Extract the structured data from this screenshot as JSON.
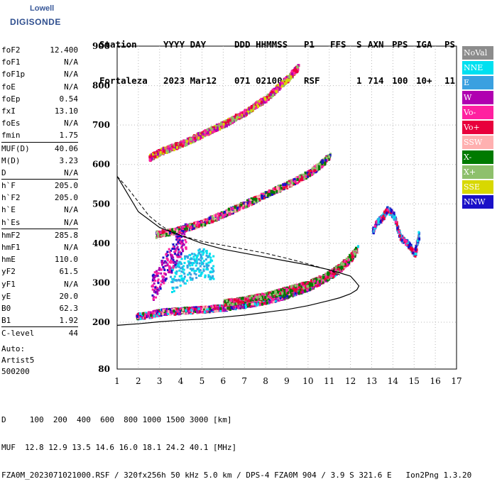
{
  "logo": {
    "brand": "Lowell",
    "name": "DIGISONDE"
  },
  "header": {
    "row1": [
      "Station",
      "YYYY DAY",
      "DDD HHMMSS",
      "P1",
      "FFS",
      "S",
      "AXN",
      "PPS",
      "IGA",
      "PS"
    ],
    "row2": [
      "Fortaleza",
      "2023 Mar12",
      "071 021000",
      "RSF",
      "",
      "1",
      "714",
      "100",
      "10+",
      "11"
    ]
  },
  "params": {
    "group1": [
      {
        "label": "foF2",
        "value": "12.400"
      },
      {
        "label": "foF1",
        "value": "N/A"
      },
      {
        "label": "foF1p",
        "value": "N/A"
      },
      {
        "label": "foE",
        "value": "N/A"
      },
      {
        "label": "foEp",
        "value": "0.54"
      },
      {
        "label": "fxI",
        "value": "13.10"
      },
      {
        "label": "foEs",
        "value": "N/A"
      },
      {
        "label": "fmin",
        "value": "1.75"
      }
    ],
    "group2": [
      {
        "label": "MUF(D)",
        "value": "40.06"
      },
      {
        "label": "M(D)",
        "value": "3.23"
      },
      {
        "label": "D",
        "value": "N/A"
      }
    ],
    "group3": [
      {
        "label": "h`F",
        "value": "205.0"
      },
      {
        "label": "h`F2",
        "value": "205.0"
      },
      {
        "label": "h`E",
        "value": "N/A"
      },
      {
        "label": "h`Es",
        "value": "N/A"
      }
    ],
    "group4": [
      {
        "label": "hmF2",
        "value": "285.8"
      },
      {
        "label": "hmF1",
        "value": "N/A"
      },
      {
        "label": "hmE",
        "value": "110.0"
      },
      {
        "label": "yF2",
        "value": "61.5"
      },
      {
        "label": "yF1",
        "value": "N/A"
      },
      {
        "label": "yE",
        "value": "20.0"
      },
      {
        "label": "B0",
        "value": "62.3"
      },
      {
        "label": "B1",
        "value": "1.92"
      }
    ],
    "group5": [
      {
        "label": "C-level",
        "value": "44"
      }
    ]
  },
  "auto": {
    "line1": "Auto:",
    "line2": "Artist5",
    "line3": "500200"
  },
  "legend": [
    {
      "label": "NoVal",
      "color": "#8c8c8c"
    },
    {
      "label": "NNE",
      "color": "#00e0f0"
    },
    {
      "label": "E",
      "color": "#3aa0e0"
    },
    {
      "label": "W",
      "color": "#b000b0"
    },
    {
      "label": "Vo-",
      "color": "#ff20a0"
    },
    {
      "label": "Vo+",
      "color": "#e8003c"
    },
    {
      "label": "SSW",
      "color": "#ffb0b0"
    },
    {
      "label": "X-",
      "color": "#007a00"
    },
    {
      "label": "X+",
      "color": "#8ec06c"
    },
    {
      "label": "SSE",
      "color": "#d8d800"
    },
    {
      "label": "NNW",
      "color": "#1a10c8"
    }
  ],
  "footer": {
    "line1": "D     100  200  400  600  800 1000 1500 3000 [km]",
    "line2": "MUF  12.8 12.9 13.5 14.6 16.0 18.1 24.2 40.1 [MHz]",
    "line3": "FZA0M_2023071021000.RSF / 320fx256h 50 kHz 5.0 km / DPS-4 FZA0M 904 / 3.9 S 321.6 E   Ion2Png 1.3.20"
  },
  "chart_data": {
    "type": "scatter",
    "xlim": [
      1,
      17
    ],
    "ylim": [
      80,
      900
    ],
    "xticks": [
      1,
      2,
      3,
      4,
      5,
      6,
      7,
      8,
      9,
      10,
      11,
      12,
      13,
      14,
      15,
      16,
      17
    ],
    "yticks": [
      80,
      200,
      300,
      400,
      500,
      600,
      700,
      800,
      900
    ],
    "grid": true,
    "legend_position": "right",
    "traces": [
      {
        "name": "O-trace",
        "x": [
          1.9,
          2.5,
          3,
          4,
          5,
          6,
          7,
          8,
          9,
          10,
          10.5,
          11,
          11.5,
          12,
          12.3
        ],
        "y": [
          218,
          222,
          228,
          232,
          235,
          240,
          248,
          258,
          272,
          292,
          305,
          320,
          340,
          365,
          390
        ]
      },
      {
        "name": "X-trace",
        "x": [
          6,
          7,
          8,
          9,
          10,
          10.5,
          11,
          11.5,
          12,
          12.2
        ],
        "y": [
          252,
          260,
          270,
          285,
          300,
          312,
          325,
          345,
          370,
          385
        ]
      },
      {
        "name": "second-hop",
        "x": [
          2.8,
          3,
          3.5,
          4,
          5,
          6,
          7,
          8,
          9,
          10,
          10.5,
          11
        ],
        "y": [
          425,
          428,
          432,
          438,
          455,
          478,
          502,
          528,
          552,
          580,
          600,
          625
        ]
      },
      {
        "name": "third-hop",
        "x": [
          2.5,
          3,
          4,
          5,
          6,
          7,
          8,
          9,
          9.5
        ],
        "y": [
          620,
          635,
          655,
          680,
          705,
          735,
          770,
          820,
          850
        ]
      },
      {
        "name": "NNE-spread",
        "x": [
          3.5,
          4,
          4.5,
          5,
          5.5
        ],
        "y": [
          310,
          330,
          345,
          355,
          340
        ]
      },
      {
        "name": "NNW-spread",
        "x": [
          2.6,
          2.8,
          3,
          3.2,
          3.5,
          3.8,
          4.2
        ],
        "y": [
          285,
          300,
          320,
          340,
          360,
          390,
          420
        ]
      },
      {
        "name": "high-freq",
        "x": [
          13,
          13.2,
          13.5,
          13.7,
          14,
          14.3,
          14.7,
          15,
          15.2
        ],
        "y": [
          430,
          455,
          470,
          490,
          475,
          420,
          400,
          375,
          425
        ]
      }
    ],
    "profile": {
      "name": "true-height",
      "x": [
        1,
        2,
        3,
        4,
        5,
        6,
        7,
        8,
        9,
        10,
        11,
        11.5,
        12,
        12.3,
        12.4,
        12.2,
        12,
        11.5,
        11,
        10,
        9,
        8,
        7,
        6,
        5,
        4,
        3,
        2,
        1
      ],
      "y": [
        192,
        196,
        201,
        205,
        208,
        213,
        218,
        225,
        232,
        242,
        255,
        262,
        272,
        282,
        292,
        305,
        317,
        325,
        333,
        345,
        355,
        365,
        375,
        385,
        400,
        420,
        440,
        480,
        570
      ]
    },
    "mufcurve": {
      "name": "MUF-curve",
      "x": [
        1,
        1.5,
        2,
        2.5,
        3,
        3.5,
        4,
        5,
        6,
        7,
        8,
        9,
        10,
        11,
        11.5
      ],
      "y": [
        570,
        540,
        505,
        470,
        448,
        430,
        420,
        405,
        395,
        385,
        375,
        362,
        348,
        332,
        320
      ]
    }
  }
}
